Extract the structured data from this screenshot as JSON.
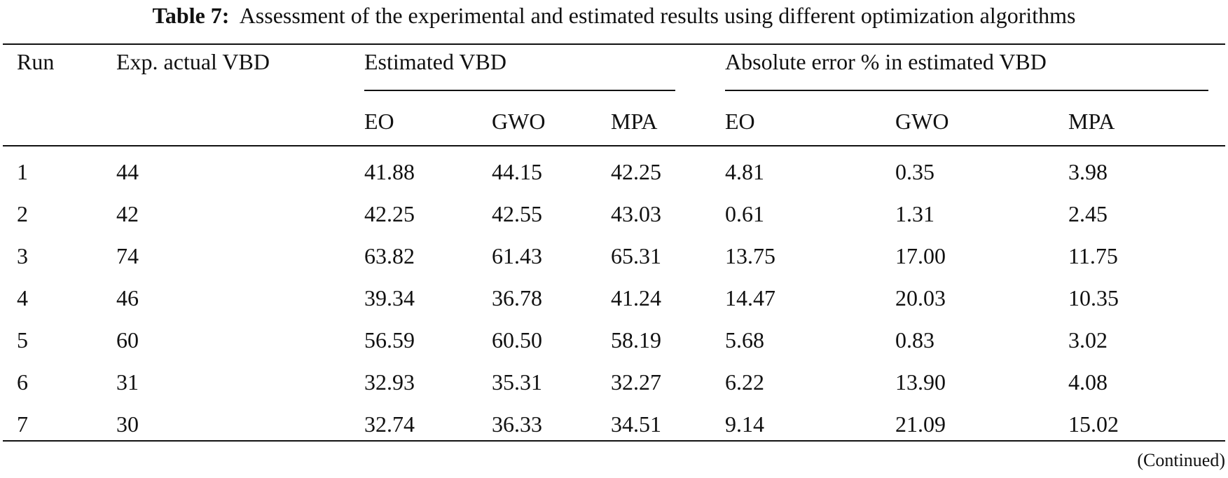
{
  "caption": {
    "label": "Table 7:",
    "text": "Assessment of the experimental and estimated results using different optimization algorithms"
  },
  "headers": {
    "run": "Run",
    "exp_actual": "Exp. actual VBD",
    "estimated_group": "Estimated VBD",
    "error_group": "Absolute error % in estimated VBD",
    "sub": [
      "EO",
      "GWO",
      "MPA",
      "EO",
      "GWO",
      "MPA"
    ]
  },
  "rows": [
    [
      "1",
      "44",
      "41.88",
      "44.15",
      "42.25",
      "4.81",
      "0.35",
      "3.98"
    ],
    [
      "2",
      "42",
      "42.25",
      "42.55",
      "43.03",
      "0.61",
      "1.31",
      "2.45"
    ],
    [
      "3",
      "74",
      "63.82",
      "61.43",
      "65.31",
      "13.75",
      "17.00",
      "11.75"
    ],
    [
      "4",
      "46",
      "39.34",
      "36.78",
      "41.24",
      "14.47",
      "20.03",
      "10.35"
    ],
    [
      "5",
      "60",
      "56.59",
      "60.50",
      "58.19",
      "5.68",
      "0.83",
      "3.02"
    ],
    [
      "6",
      "31",
      "32.93",
      "35.31",
      "32.27",
      "6.22",
      "13.90",
      "4.08"
    ],
    [
      "7",
      "30",
      "32.74",
      "36.33",
      "34.51",
      "9.14",
      "21.09",
      "15.02"
    ]
  ],
  "footer": "(Continued)"
}
